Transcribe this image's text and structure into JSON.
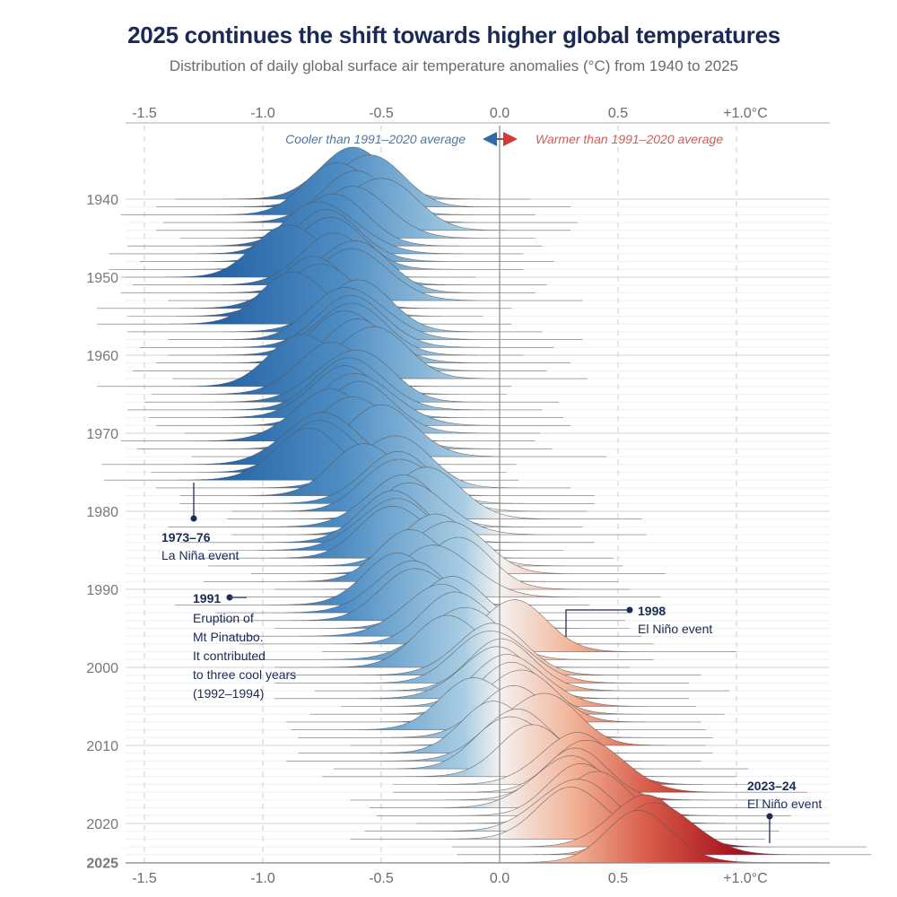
{
  "title": "2025 continues the shift towards higher global temperatures",
  "subtitle": "Distribution of daily global surface air temperature anomalies (°C) from 1940 to 2025",
  "legend": {
    "cooler": "Cooler than 1991–2020 average",
    "warmer": "Warmer than 1991–2020 average",
    "cooler_color": "#2f6aa8",
    "warmer_color": "#d23a3a"
  },
  "annotations": [
    {
      "title": "1973–76",
      "lines": [
        "La Niña event"
      ]
    },
    {
      "title": "1991",
      "lines": [
        "Eruption of",
        "Mt Pinatubo.",
        "It contributed",
        "to three cool years",
        "(1992–1994)"
      ]
    },
    {
      "title": "1998",
      "lines": [
        "El Niño event"
      ]
    },
    {
      "title": "2023–24",
      "lines": [
        "El Niño event"
      ]
    }
  ],
  "chart_data": {
    "type": "ridgeline",
    "x_ticks": [
      "-1.5",
      "-1.0",
      "-0.5",
      "0.0",
      "0.5",
      "+1.0°C"
    ],
    "x_tick_values": [
      -1.5,
      -1.0,
      -0.5,
      0.0,
      0.5,
      1.0
    ],
    "xlim": [
      -1.58,
      1.39
    ],
    "y_ticks": [
      "1940",
      "1950",
      "1960",
      "1970",
      "1980",
      "1990",
      "2000",
      "2010",
      "2020",
      "2025"
    ],
    "y_tick_values": [
      1940,
      1950,
      1960,
      1970,
      1980,
      1990,
      2000,
      2010,
      2020,
      2025
    ],
    "color_scale": {
      "cold": "#1c5a9e",
      "neutral": "#f4f2f0",
      "warm": "#a8111d"
    },
    "grid": true,
    "years": [
      1940,
      1941,
      1942,
      1943,
      1944,
      1945,
      1946,
      1947,
      1948,
      1949,
      1950,
      1951,
      1952,
      1953,
      1954,
      1955,
      1956,
      1957,
      1958,
      1959,
      1960,
      1961,
      1962,
      1963,
      1964,
      1965,
      1966,
      1967,
      1968,
      1969,
      1970,
      1971,
      1972,
      1973,
      1974,
      1975,
      1976,
      1977,
      1978,
      1979,
      1980,
      1981,
      1982,
      1983,
      1984,
      1985,
      1986,
      1987,
      1988,
      1989,
      1990,
      1991,
      1992,
      1993,
      1994,
      1995,
      1996,
      1997,
      1998,
      1999,
      2000,
      2001,
      2002,
      2003,
      2004,
      2005,
      2006,
      2007,
      2008,
      2009,
      2010,
      2011,
      2012,
      2013,
      2014,
      2015,
      2016,
      2017,
      2018,
      2019,
      2020,
      2021,
      2022,
      2023,
      2024,
      2025
    ],
    "mean_anomaly": [
      -0.62,
      -0.6,
      -0.65,
      -0.62,
      -0.55,
      -0.6,
      -0.72,
      -0.7,
      -0.72,
      -0.75,
      -0.85,
      -0.7,
      -0.65,
      -0.6,
      -0.8,
      -0.82,
      -0.85,
      -0.62,
      -0.6,
      -0.62,
      -0.65,
      -0.6,
      -0.6,
      -0.58,
      -0.8,
      -0.72,
      -0.65,
      -0.62,
      -0.68,
      -0.55,
      -0.58,
      -0.75,
      -0.58,
      -0.5,
      -0.78,
      -0.72,
      -0.82,
      -0.5,
      -0.55,
      -0.45,
      -0.38,
      -0.3,
      -0.45,
      -0.33,
      -0.45,
      -0.48,
      -0.42,
      -0.28,
      -0.25,
      -0.35,
      -0.2,
      -0.22,
      -0.42,
      -0.4,
      -0.32,
      -0.2,
      -0.3,
      -0.15,
      0.05,
      -0.2,
      -0.2,
      -0.05,
      0.0,
      0.02,
      -0.05,
      0.08,
      0.05,
      0.05,
      -0.08,
      0.05,
      0.12,
      0.0,
      0.05,
      0.1,
      0.15,
      0.3,
      0.4,
      0.32,
      0.25,
      0.38,
      0.4,
      0.28,
      0.32,
      0.6,
      0.72,
      0.6
    ],
    "spread_sd": 0.15
  }
}
